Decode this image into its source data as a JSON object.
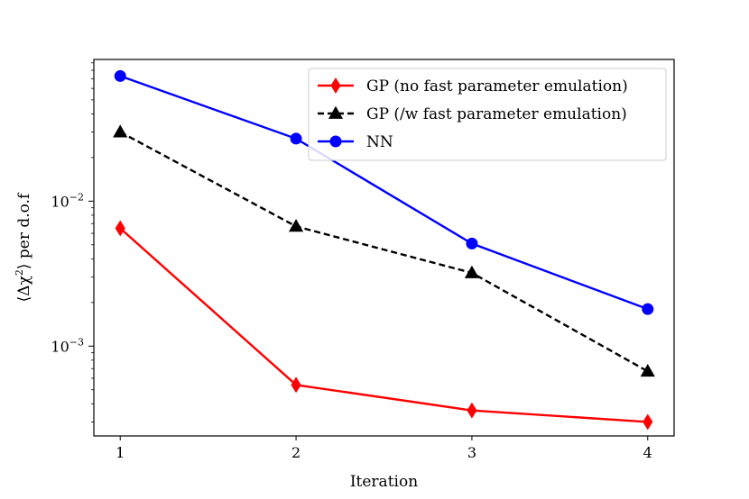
{
  "chart_data": {
    "type": "line",
    "xlabel": "Iteration",
    "ylabel": {
      "open": "⟨Δχ",
      "exp": "2",
      "close": "⟩ per d.o.f"
    },
    "yscale": "log",
    "xlim": [
      0.85,
      4.15
    ],
    "ylim": [
      0.00024,
      0.095
    ],
    "x": [
      1,
      2,
      3,
      4
    ],
    "x_ticks": [
      1,
      2,
      3,
      4
    ],
    "x_tick_labels": [
      "1",
      "2",
      "3",
      "4"
    ],
    "y_major_ticks": [
      0.001,
      0.01
    ],
    "y_tick_labels": [
      {
        "base": "10",
        "exp": "−3"
      },
      {
        "base": "10",
        "exp": "−2"
      }
    ],
    "legend_position": "top-right",
    "series": [
      {
        "name": "GP (no fast parameter emulation)",
        "values": [
          0.0065,
          0.00054,
          0.00036,
          0.0003
        ],
        "color": "#ff0000",
        "marker": "thin-diamond",
        "linestyle": "solid"
      },
      {
        "name": "GP (/w fast parameter emulation)",
        "values": [
          0.03,
          0.0067,
          0.0032,
          0.00067
        ],
        "color": "#000000",
        "marker": "triangle",
        "linestyle": "dashed"
      },
      {
        "name": "NN",
        "values": [
          0.073,
          0.027,
          0.0051,
          0.0018
        ],
        "color": "#0000ff",
        "marker": "circle",
        "linestyle": "solid"
      }
    ]
  }
}
